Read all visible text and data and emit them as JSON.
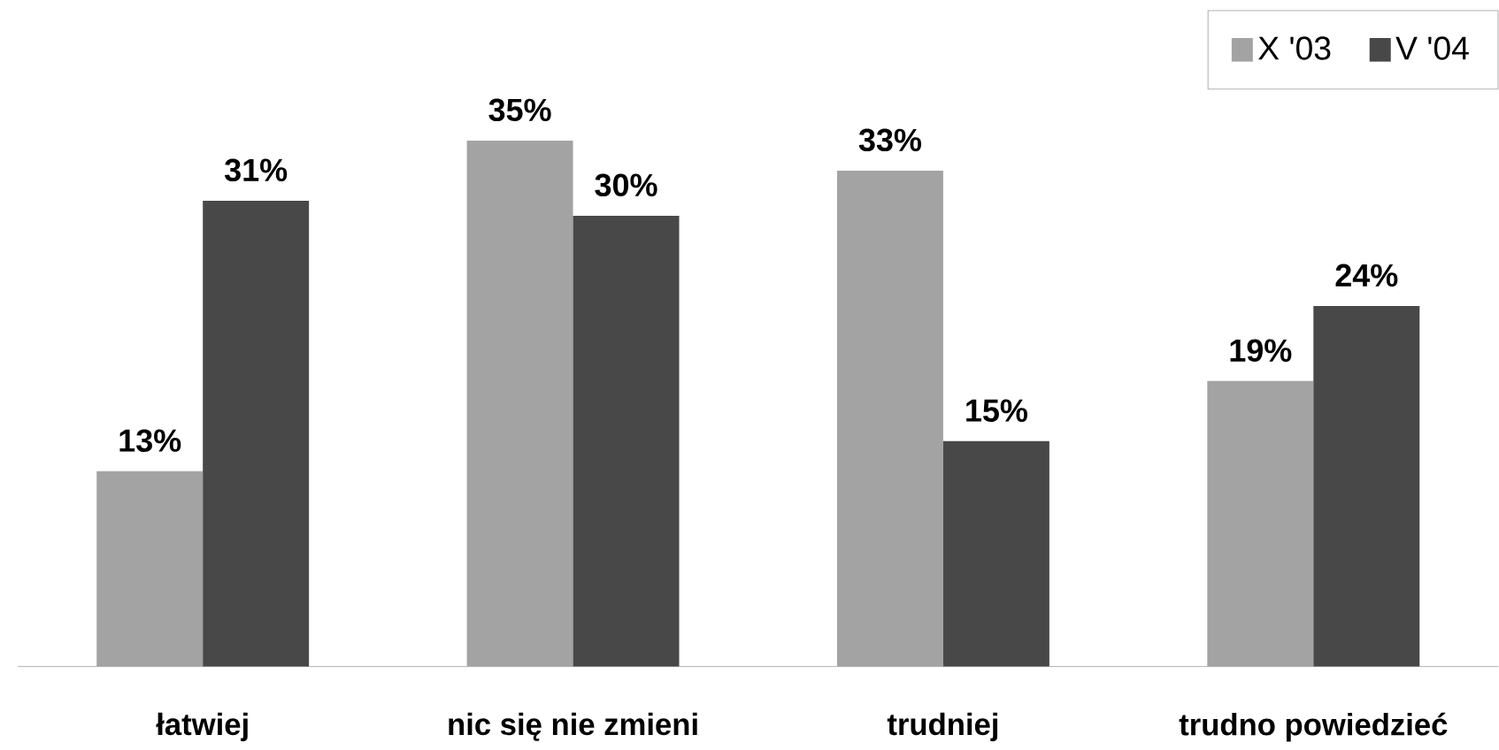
{
  "chart_data": {
    "type": "bar",
    "categories": [
      "łatwiej",
      "nic się nie zmieni",
      "trudniej",
      "trudno powiedzieć"
    ],
    "series": [
      {
        "name": "X '03",
        "color": "#a3a3a3",
        "values": [
          13,
          35,
          33,
          19
        ],
        "value_labels": [
          "13%",
          "35%",
          "33%",
          "19%"
        ]
      },
      {
        "name": "V '04",
        "color": "#484848",
        "values": [
          31,
          30,
          15,
          24
        ],
        "value_labels": [
          "31%",
          "30%",
          "15%",
          "24%"
        ]
      }
    ],
    "ylim": [
      0,
      42
    ],
    "legend": "top right"
  }
}
